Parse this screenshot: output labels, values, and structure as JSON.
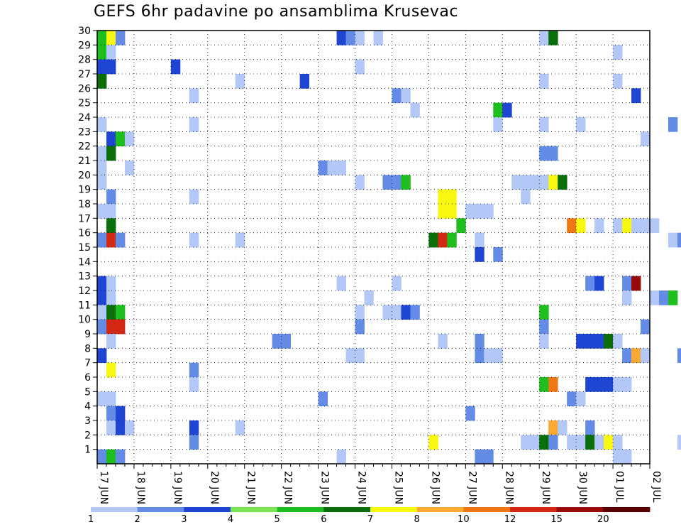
{
  "chart_data": {
    "type": "heatmap",
    "title": "GEFS 6hr padavine po ansamblima Krusevac",
    "xlabel": "",
    "ylabel": "",
    "x_ticks": [
      "17 JUN",
      "18 JUN",
      "19 JUN",
      "20 JUN",
      "21 JUN",
      "22 JUN",
      "23 JUN",
      "24 JUN",
      "25 JUN",
      "26 JUN",
      "27 JUN",
      "28 JUN",
      "29 JUN",
      "30 JUN",
      "01 JUL",
      "02 JUL"
    ],
    "y_ticks": [
      "1",
      "2",
      "3",
      "4",
      "5",
      "6",
      "7",
      "8",
      "9",
      "10",
      "11",
      "12",
      "13",
      "14",
      "15",
      "16",
      "17",
      "18",
      "19",
      "20",
      "21",
      "22",
      "23",
      "24",
      "25",
      "26",
      "27",
      "28",
      "29",
      "30"
    ],
    "time_steps_per_day": 4,
    "ylim": [
      0,
      30
    ],
    "grid": "dotted",
    "colorbar": {
      "labels": [
        "1",
        "2",
        "3",
        "4",
        "5",
        "6",
        "7",
        "8",
        "10",
        "12",
        "15",
        "20"
      ],
      "colors": [
        "#b4c8f8",
        "#648ce6",
        "#1e46d2",
        "#78e650",
        "#1ebe1e",
        "#0a6e0a",
        "#f8f810",
        "#faaa32",
        "#f07814",
        "#d22814",
        "#960a0a",
        "#5a0000"
      ]
    },
    "cells": [
      [
        0,
        1,
        1
      ],
      [
        0,
        4,
        1
      ],
      [
        0,
        12,
        1
      ],
      [
        1,
        12,
        1
      ],
      [
        2,
        12,
        1
      ],
      [
        3,
        12,
        1
      ],
      [
        4,
        12,
        1
      ],
      [
        5,
        12,
        1
      ],
      [
        6,
        12,
        1
      ],
      [
        7,
        12,
        1
      ],
      [
        0,
        3,
        1
      ],
      [
        1,
        3,
        1
      ],
      [
        2,
        3,
        1
      ],
      [
        3,
        3,
        1
      ],
      [
        4,
        3,
        1
      ],
      [
        5,
        3,
        1
      ],
      [
        6,
        3,
        1
      ],
      [
        7,
        3,
        1
      ],
      [
        8,
        3,
        1
      ],
      [
        9,
        3,
        1
      ],
      [
        10,
        3,
        1
      ],
      [
        11,
        3,
        1
      ],
      [
        12,
        3,
        1
      ],
      [
        13,
        3,
        1
      ],
      [
        14,
        3,
        1
      ],
      [
        15,
        3,
        1
      ],
      [
        16,
        3,
        1
      ],
      [
        17,
        3,
        1
      ],
      [
        18,
        3,
        1
      ],
      [
        19,
        3,
        1
      ],
      [
        20,
        3,
        1
      ],
      [
        21,
        3,
        1
      ],
      [
        22,
        3,
        1
      ],
      [
        23,
        3,
        1
      ],
      [
        24,
        3,
        1
      ],
      [
        25,
        3,
        1
      ],
      [
        26,
        3,
        1
      ],
      [
        27,
        3,
        1
      ],
      [
        28,
        3,
        1
      ],
      [
        29,
        3,
        1
      ],
      [
        30,
        3,
        1
      ],
      [
        31,
        3,
        1
      ],
      [
        32,
        3,
        1
      ],
      [
        33,
        3,
        1
      ],
      [
        34,
        3,
        1
      ],
      [
        35,
        3,
        1
      ],
      [
        36,
        3,
        1
      ],
      [
        37,
        3,
        1
      ],
      [
        38,
        3,
        1
      ],
      [
        39,
        3,
        1
      ],
      [
        31,
        23,
        2
      ],
      [
        31,
        24,
        2
      ],
      [
        31,
        25,
        2
      ],
      [
        31,
        26,
        2
      ],
      [
        36,
        22,
        2
      ],
      [
        37,
        22,
        2
      ],
      [
        36,
        21,
        2
      ],
      [
        37,
        21,
        2
      ],
      [
        36,
        19,
        2
      ],
      [
        37,
        19,
        2
      ],
      [
        36,
        18,
        2
      ],
      [
        37,
        18,
        2
      ],
      [
        38,
        18,
        2
      ],
      [
        39,
        18,
        2
      ],
      [
        36,
        17,
        2
      ],
      [
        37,
        17,
        2
      ],
      [
        38,
        17,
        2
      ],
      [
        39,
        17,
        2
      ],
      [
        40,
        14,
        1
      ],
      [
        41,
        14,
        1
      ],
      [
        42,
        14,
        1
      ],
      [
        43,
        14,
        1
      ],
      [
        40,
        13,
        1
      ],
      [
        41,
        13,
        1
      ],
      [
        42,
        13,
        1
      ],
      [
        43,
        13,
        1
      ],
      [
        44,
        13,
        1
      ],
      [
        45,
        13,
        1
      ],
      [
        46,
        13,
        1
      ],
      [
        47,
        13,
        1
      ],
      [
        48,
        12,
        1
      ],
      [
        49,
        12,
        1
      ],
      [
        50,
        12,
        1
      ],
      [
        51,
        12,
        1
      ],
      [
        52,
        12,
        1
      ],
      [
        53,
        12,
        1
      ],
      [
        54,
        12,
        1
      ],
      [
        55,
        12,
        1
      ],
      [
        56,
        12,
        1
      ],
      [
        57,
        12,
        1
      ],
      [
        58,
        12,
        1
      ],
      [
        59,
        12,
        1
      ],
      [
        15,
        2,
        1
      ],
      [
        16,
        2,
        1
      ],
      [
        17,
        2,
        1
      ],
      [
        18,
        2,
        1
      ],
      [
        27,
        10,
        1
      ],
      [
        28,
        10,
        1
      ],
      [
        29,
        10,
        1
      ],
      [
        30,
        10,
        1
      ],
      [
        47,
        21,
        1
      ],
      [
        48,
        21,
        1
      ],
      [
        44,
        15,
        3
      ],
      [
        45,
        15,
        3
      ],
      [
        55,
        15,
        1
      ],
      [
        35,
        15,
        1
      ],
      [
        35,
        16,
        1
      ],
      [
        0,
        0,
        2
      ],
      [
        1,
        0,
        3
      ],
      [
        2,
        0,
        4
      ],
      [
        3,
        0,
        2
      ],
      [
        0,
        10,
        2
      ],
      [
        1,
        10,
        4
      ],
      [
        2,
        10,
        4
      ],
      [
        3,
        10,
        5
      ],
      [
        1,
        4,
        3
      ],
      [
        2,
        4,
        3
      ],
      [
        3,
        4,
        3
      ],
      [
        4,
        4,
        3
      ]
    ],
    "cells_note_ignore": ""
  }
}
